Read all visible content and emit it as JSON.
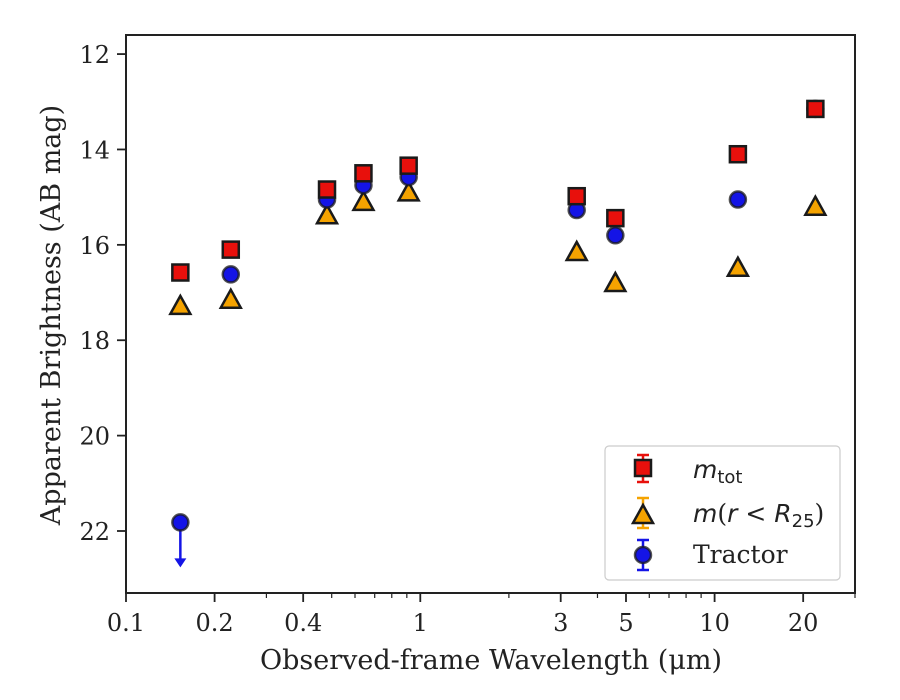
{
  "chart_data": {
    "type": "scatter",
    "xlabel": "Observed-frame Wavelength (μm)",
    "ylabel": "Apparent Brightness (AB mag)",
    "x_scale": "log",
    "xlim": [
      0.1,
      30
    ],
    "ylim": [
      23.3,
      11.6
    ],
    "y_inverted": true,
    "x_ticks": [
      {
        "value": 0.1,
        "label": "0.1"
      },
      {
        "value": 0.2,
        "label": "0.2"
      },
      {
        "value": 0.4,
        "label": "0.4"
      },
      {
        "value": 1,
        "label": "1"
      },
      {
        "value": 3,
        "label": "3"
      },
      {
        "value": 5,
        "label": "5"
      },
      {
        "value": 10,
        "label": "10"
      },
      {
        "value": 20,
        "label": "20"
      }
    ],
    "y_ticks": [
      {
        "value": 12,
        "label": "12"
      },
      {
        "value": 14,
        "label": "14"
      },
      {
        "value": 16,
        "label": "16"
      },
      {
        "value": 18,
        "label": "18"
      },
      {
        "value": 20,
        "label": "20"
      },
      {
        "value": 22,
        "label": "22"
      }
    ],
    "grid": false,
    "legend_position": "lower-right",
    "series": [
      {
        "name": "m_tot",
        "marker": "square",
        "color": "#e8100c",
        "points": [
          {
            "x": 0.153,
            "y": 16.58
          },
          {
            "x": 0.227,
            "y": 16.1
          },
          {
            "x": 0.482,
            "y": 14.84
          },
          {
            "x": 0.641,
            "y": 14.5
          },
          {
            "x": 0.913,
            "y": 14.34
          },
          {
            "x": 3.4,
            "y": 14.98
          },
          {
            "x": 4.6,
            "y": 15.44
          },
          {
            "x": 12.0,
            "y": 14.1
          },
          {
            "x": 22.0,
            "y": 13.15
          }
        ]
      },
      {
        "name": "m(r < R_25)",
        "marker": "triangle",
        "color": "#f5a300",
        "points": [
          {
            "x": 0.153,
            "y": 17.28
          },
          {
            "x": 0.227,
            "y": 17.15
          },
          {
            "x": 0.482,
            "y": 15.38
          },
          {
            "x": 0.641,
            "y": 15.1
          },
          {
            "x": 0.913,
            "y": 14.9
          },
          {
            "x": 3.4,
            "y": 16.15
          },
          {
            "x": 4.6,
            "y": 16.8
          },
          {
            "x": 12.0,
            "y": 16.48
          },
          {
            "x": 22.0,
            "y": 15.2
          }
        ]
      },
      {
        "name": "Tractor",
        "marker": "circle",
        "color": "#1414e6",
        "points": [
          {
            "x": 0.153,
            "y": 21.82,
            "upper_limit": true
          },
          {
            "x": 0.227,
            "y": 16.62
          },
          {
            "x": 0.482,
            "y": 15.05
          },
          {
            "x": 0.641,
            "y": 14.75
          },
          {
            "x": 0.913,
            "y": 14.58
          },
          {
            "x": 3.4,
            "y": 15.27
          },
          {
            "x": 4.6,
            "y": 15.8
          },
          {
            "x": 12.0,
            "y": 15.05
          },
          {
            "x": 22.0,
            "y": 13.15
          }
        ]
      }
    ],
    "legend": {
      "tot": {
        "main": "m",
        "sub": "tot"
      },
      "r25": {
        "pre": "m",
        "mid": "(",
        "r": "r",
        "lt": " < ",
        "R": "R",
        "sub": "25",
        "post": ")"
      },
      "tractor": "Tractor"
    }
  }
}
